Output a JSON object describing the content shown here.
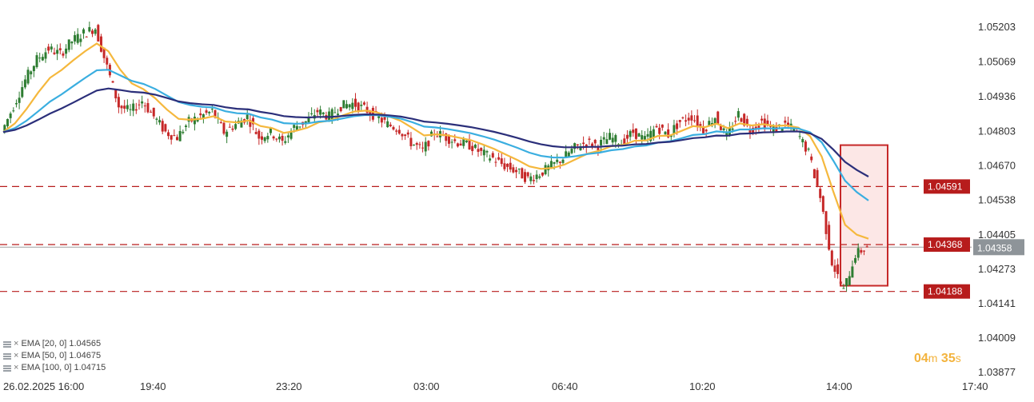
{
  "chart_data": {
    "type": "candlestick",
    "y_ticks": [
      "1.05203",
      "1.05069",
      "1.04936",
      "1.04803",
      "1.04670",
      "1.04538",
      "1.04405",
      "1.04273",
      "1.04141",
      "1.04009",
      "1.03877"
    ],
    "ylim": [
      1.03877,
      1.05203
    ],
    "x_ticks": [
      "26.02.2025  16:00",
      "19:40",
      "23:20",
      "03:00",
      "06:40",
      "10:20",
      "14:00",
      "17:40"
    ],
    "horizontal_levels": [
      {
        "value": "1.04591",
        "color": "#b71c1c"
      },
      {
        "value": "1.04368",
        "color": "#b71c1c"
      },
      {
        "value": "1.04188",
        "color": "#b71c1c"
      }
    ],
    "current_price": {
      "value": "1.04358",
      "color": "#8e9499"
    },
    "price_series": [
      1.048,
      1.049,
      1.05,
      1.0508,
      1.0512,
      1.051,
      1.0515,
      1.0518,
      1.052,
      1.0505,
      1.049,
      1.0488,
      1.0492,
      1.0486,
      1.048,
      1.0478,
      1.0484,
      1.0486,
      1.0488,
      1.048,
      1.0483,
      1.0486,
      1.0478,
      1.048,
      1.0476,
      1.0482,
      1.0484,
      1.0488,
      1.0486,
      1.049,
      1.0491,
      1.0489,
      1.0486,
      1.0483,
      1.0481,
      1.0476,
      1.0473,
      1.048,
      1.0478,
      1.0476,
      1.0475,
      1.0472,
      1.047,
      1.0467,
      1.0465,
      1.0462,
      1.0464,
      1.0467,
      1.047,
      1.0474,
      1.0476,
      1.0475,
      1.0478,
      1.0476,
      1.048,
      1.0477,
      1.0482,
      1.0479,
      1.0484,
      1.0486,
      1.0481,
      1.0486,
      1.0478,
      1.0487,
      1.0481,
      1.0484,
      1.0481,
      1.0483,
      1.048,
      1.0472,
      1.0455,
      1.043,
      1.0419,
      1.0433,
      1.0436
    ],
    "series": [
      {
        "name": "EMA [20, 0]",
        "last": "1.04565",
        "color": "#f5b83d"
      },
      {
        "name": "EMA [50, 0]",
        "last": "1.04675",
        "color": "#3aaee0"
      },
      {
        "name": "EMA [100, 0]",
        "last": "1.04715",
        "color": "#2b2f7a"
      }
    ],
    "highlight_box": {
      "y_top": 1.0475,
      "y_bottom": 1.0421,
      "color": "#c62828"
    },
    "candle_up_color": "#2e7d32",
    "candle_down_color": "#c62828"
  },
  "legend": [
    {
      "label": "EMA [20, 0] 1.04565"
    },
    {
      "label": "EMA [50, 0] 1.04675"
    },
    {
      "label": "EMA [100, 0] 1.04715"
    }
  ],
  "legend_remove_glyph": "×",
  "timer": {
    "minutes": "04",
    "m_unit": "m",
    "seconds": "35",
    "s_unit": "s"
  }
}
